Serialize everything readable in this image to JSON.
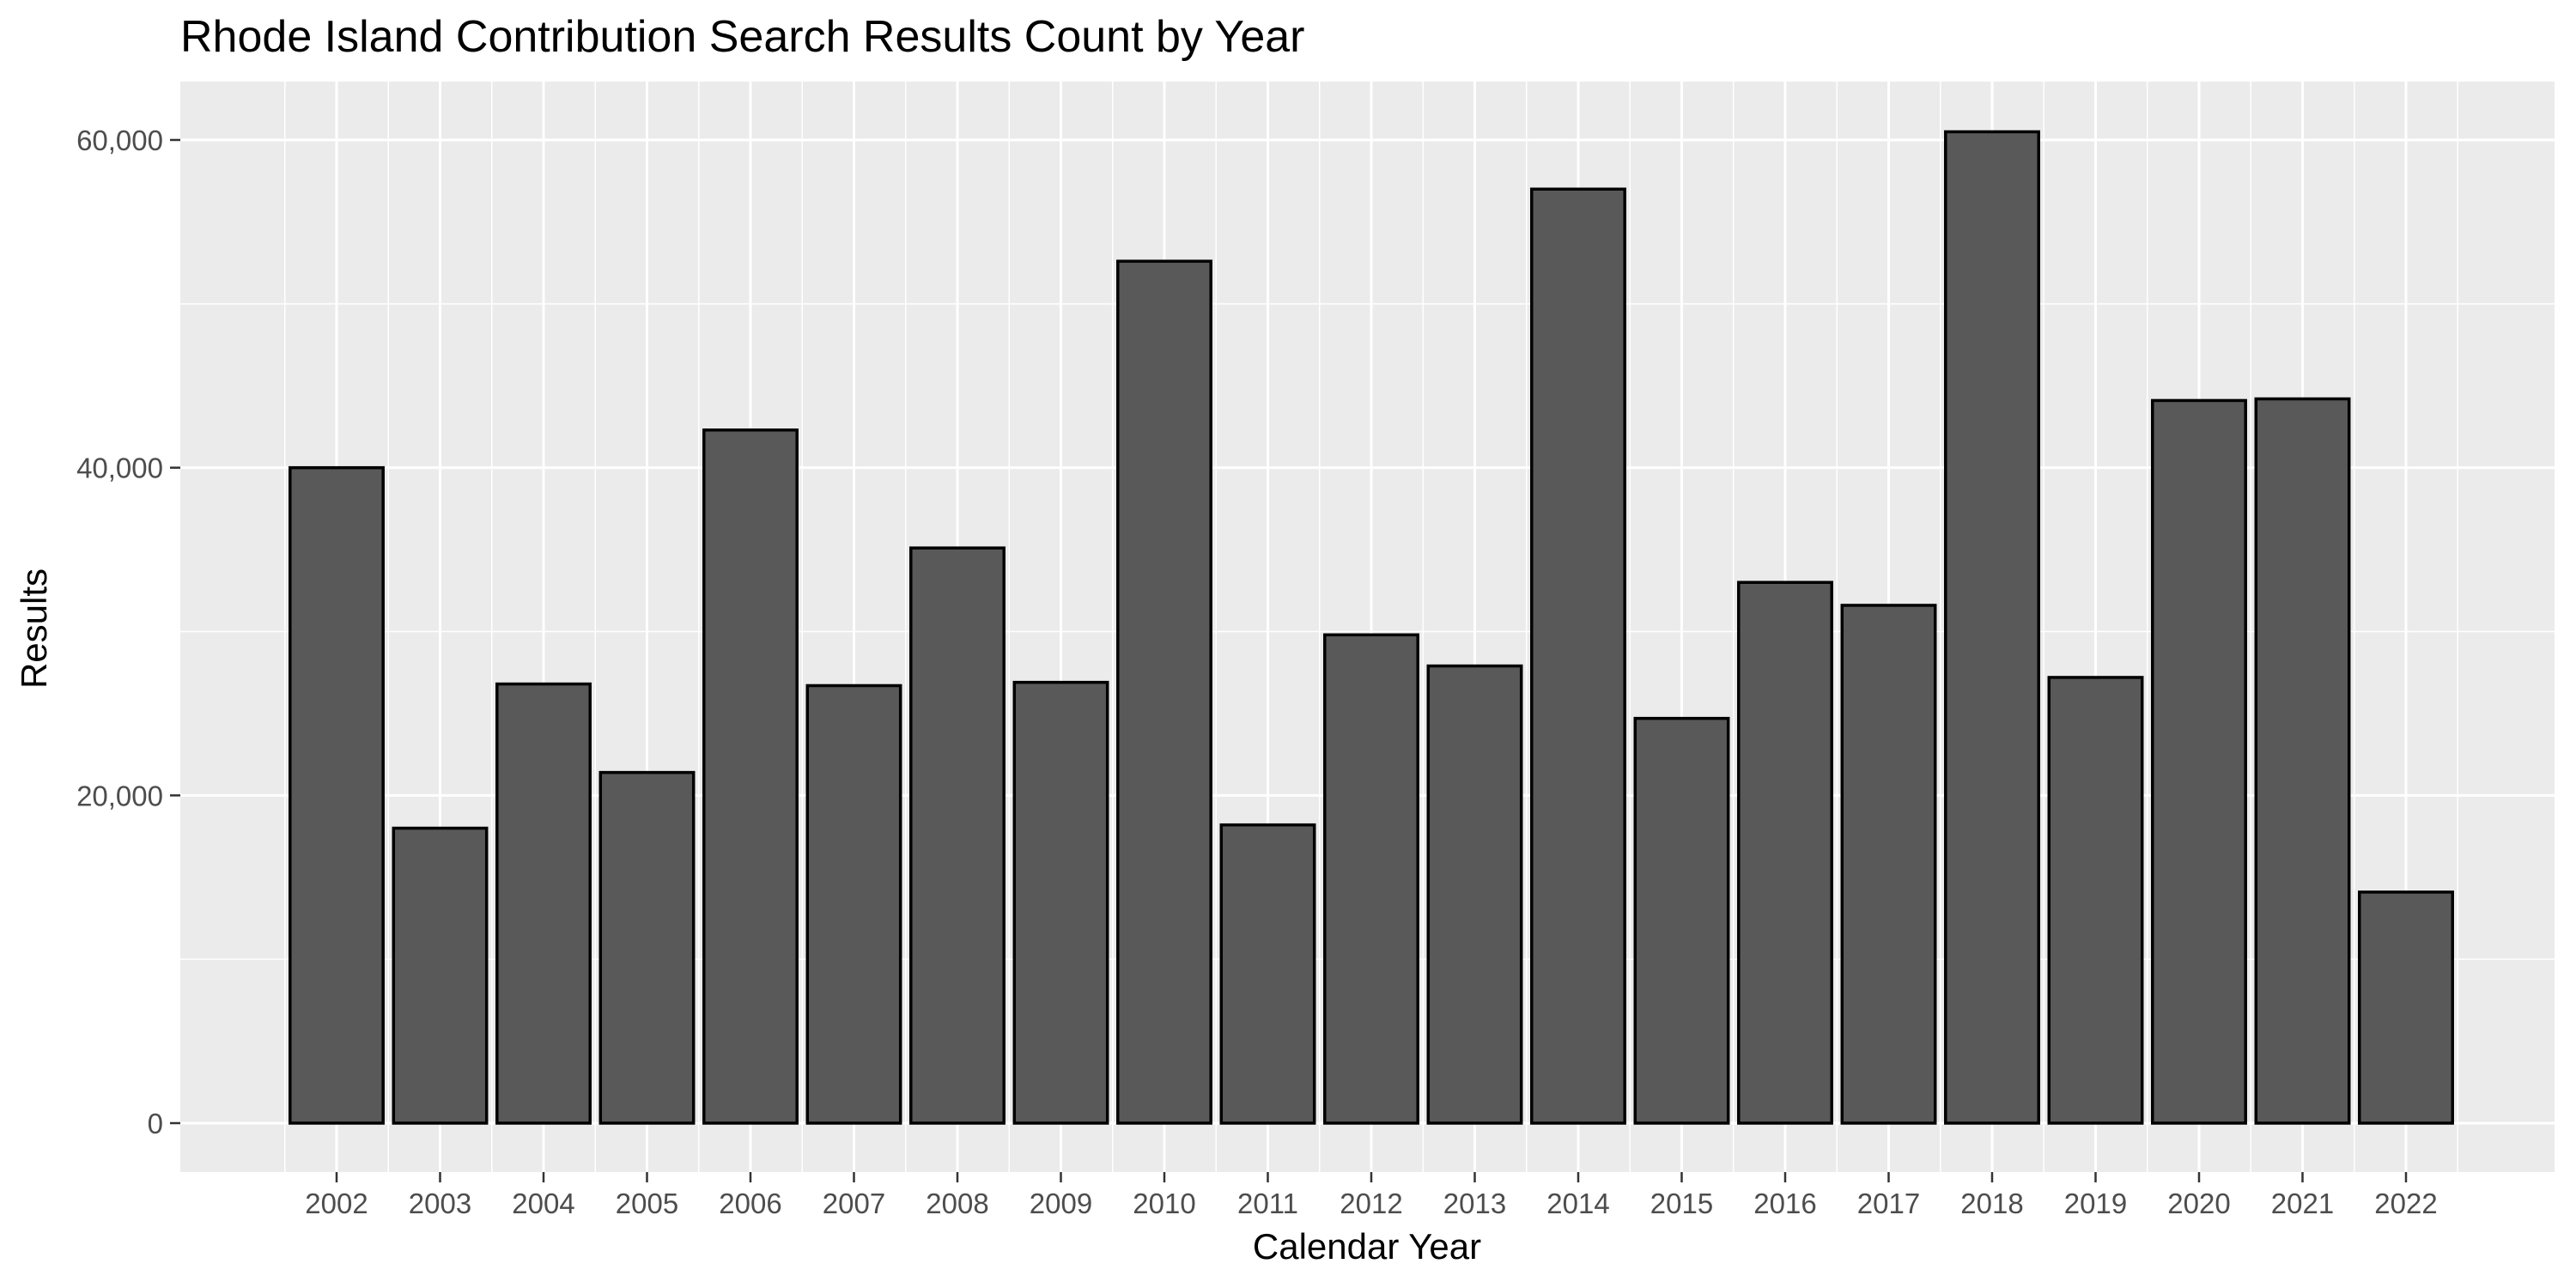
{
  "chart_data": {
    "type": "bar",
    "title": "Rhode Island Contribution Search Results Count by Year",
    "xlabel": "Calendar Year",
    "ylabel": "Results",
    "categories": [
      "2002",
      "2003",
      "2004",
      "2005",
      "2006",
      "2007",
      "2008",
      "2009",
      "2010",
      "2011",
      "2012",
      "2013",
      "2014",
      "2015",
      "2016",
      "2017",
      "2018",
      "2019",
      "2020",
      "2021",
      "2022"
    ],
    "values": [
      40000,
      18000,
      26800,
      21400,
      42300,
      26700,
      35100,
      26900,
      52600,
      18200,
      29800,
      27900,
      57000,
      24700,
      33000,
      31600,
      60500,
      27200,
      44100,
      44200,
      14100
    ],
    "ylim": [
      0,
      63000
    ],
    "y_ticks": [
      0,
      20000,
      40000,
      60000
    ],
    "y_tick_labels": [
      "0",
      "20,000",
      "40,000",
      "60,000"
    ],
    "grid": true,
    "legend": "none",
    "colors": {
      "bar_fill": "#595959",
      "bar_stroke": "#000000",
      "panel_background": "#ebebeb",
      "grid_line": "#ffffff"
    }
  }
}
